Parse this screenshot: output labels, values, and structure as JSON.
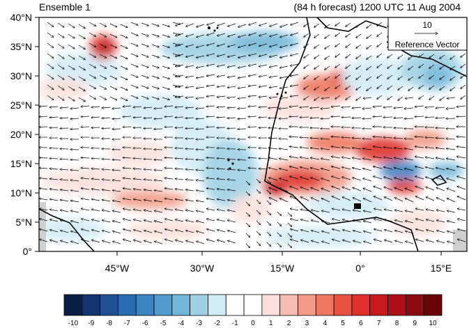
{
  "title_left": "Ensemble 1",
  "title_right": "(84 h forecast) 1200 UTC 11 Aug 2004",
  "y_ticks": [
    "40°N",
    "35°N",
    "30°N",
    "25°N",
    "20°N",
    "15°N",
    "10°N",
    "5°N",
    "0°"
  ],
  "x_ticks": [
    "45°W",
    "30°W",
    "15°W",
    "0°",
    "15°E"
  ],
  "reference_vector": {
    "value": "10",
    "label": "Reference Vector"
  },
  "colorbar": {
    "labels": [
      "-10",
      "-9",
      "-8",
      "-7",
      "-6",
      "-5",
      "-4",
      "-3",
      "-2",
      "-1",
      "0",
      "1",
      "2",
      "3",
      "4",
      "5",
      "6",
      "7",
      "8",
      "9",
      "10"
    ],
    "colors": [
      "#0a1f44",
      "#11336e",
      "#1f4f93",
      "#2a6cb0",
      "#3a84c2",
      "#4f9ccc",
      "#72b6d8",
      "#9fd1e4",
      "#d2ecf6",
      "#ffffff",
      "#ffffff",
      "#fbe0dc",
      "#f5beb0",
      "#f19a86",
      "#ed7760",
      "#e8503f",
      "#de3129",
      "#c8191d",
      "#ad1018",
      "#8c0a12",
      "#690308"
    ]
  },
  "colors": {
    "land_outline": "#000000",
    "anomaly_warm": "#e8503f",
    "anomaly_cool": "#72b6d8",
    "missing": "#cfcfcf"
  }
}
